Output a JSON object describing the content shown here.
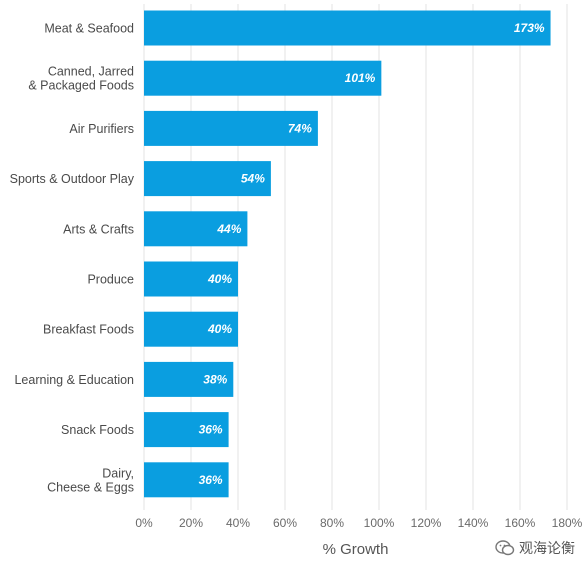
{
  "chart_data": {
    "type": "bar",
    "orientation": "horizontal",
    "categories": [
      [
        "Meat & Seafood"
      ],
      [
        "Canned, Jarred",
        "& Packaged Foods"
      ],
      [
        "Air Purifiers"
      ],
      [
        "Sports & Outdoor Play"
      ],
      [
        "Arts & Crafts"
      ],
      [
        "Produce"
      ],
      [
        "Breakfast Foods"
      ],
      [
        "Learning & Education"
      ],
      [
        "Snack Foods"
      ],
      [
        "Dairy,",
        "Cheese & Eggs"
      ]
    ],
    "values": [
      173,
      101,
      74,
      54,
      44,
      40,
      40,
      38,
      36,
      36
    ],
    "value_labels": [
      "173%",
      "101%",
      "74%",
      "54%",
      "44%",
      "40%",
      "40%",
      "38%",
      "36%",
      "36%"
    ],
    "xlabel": "% Growth",
    "xlim": [
      0,
      180
    ],
    "ticks": [
      0,
      20,
      40,
      60,
      80,
      100,
      120,
      140,
      160,
      180
    ],
    "tick_labels": [
      "0%",
      "20%",
      "40%",
      "60%",
      "80%",
      "100%",
      "120%",
      "140%",
      "160%",
      "180%"
    ],
    "grid": "vertical",
    "bar_color": "#0a9ee0"
  },
  "watermark": {
    "text": "观海论衡"
  }
}
